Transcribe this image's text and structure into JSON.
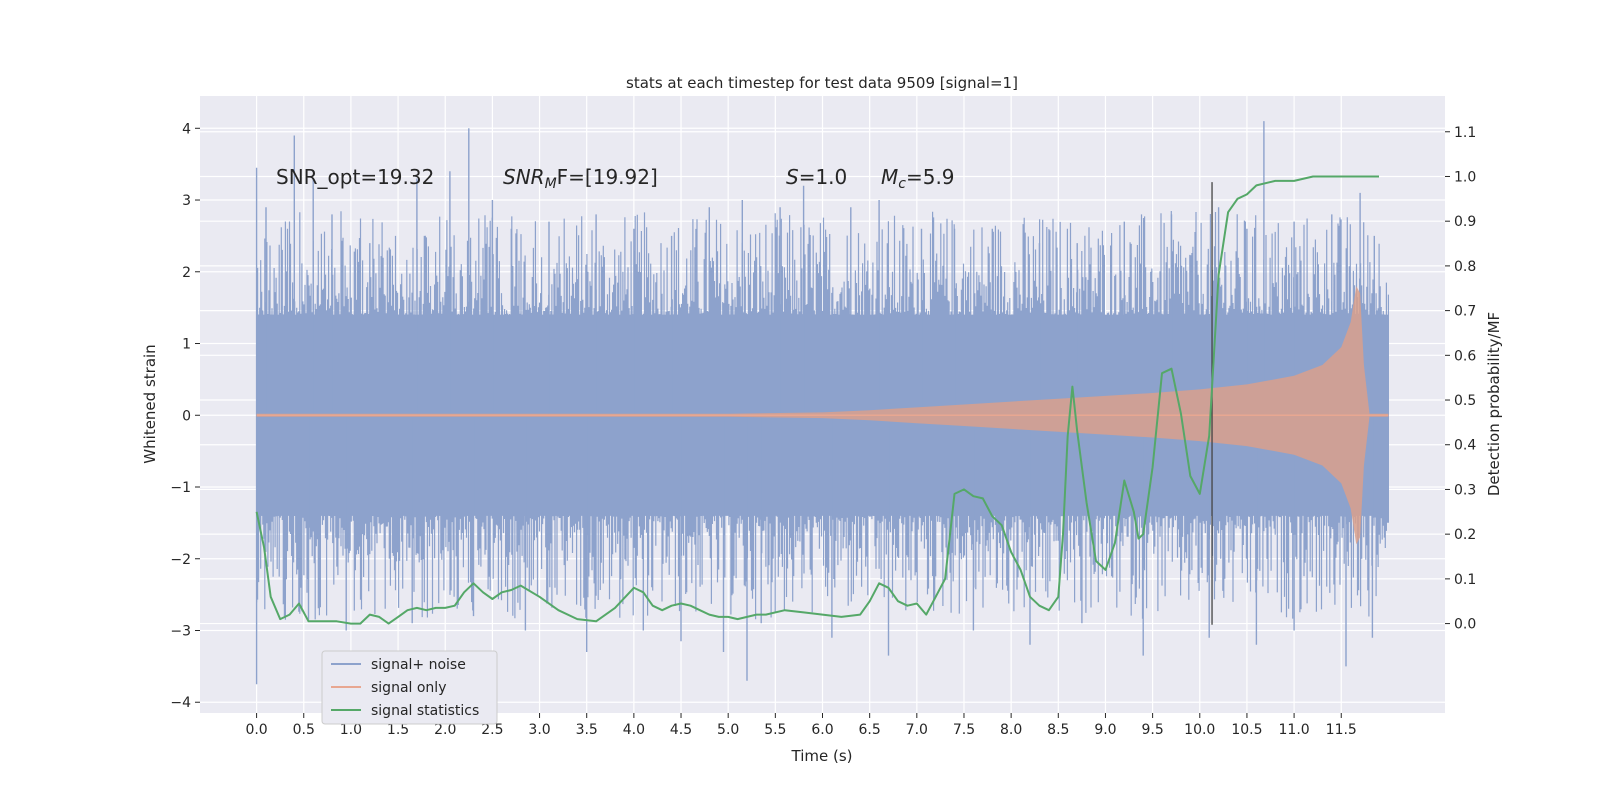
{
  "chart_data": {
    "type": "line",
    "title": "stats at each timestep for test data 9509 [signal=1]",
    "xlabel": "Time (s)",
    "ylabel": "Whitened strain",
    "ylabel_right": "Detection probability/MF",
    "xlim": [
      -0.6,
      12.6
    ],
    "ylim": [
      -4.15,
      4.45
    ],
    "ylim_right": [
      -0.2,
      1.18
    ],
    "x_ticks": [
      0.0,
      0.5,
      1.0,
      1.5,
      2.0,
      2.5,
      3.0,
      3.5,
      4.0,
      4.5,
      5.0,
      5.5,
      6.0,
      6.5,
      7.0,
      7.5,
      8.0,
      8.5,
      9.0,
      9.5,
      10.0,
      10.5,
      11.0,
      11.5
    ],
    "x_tick_labels": [
      "0.0",
      "0.5",
      "1.0",
      "1.5",
      "2.0",
      "2.5",
      "3.0",
      "3.5",
      "4.0",
      "4.5",
      "5.0",
      "5.5",
      "6.0",
      "6.5",
      "7.0",
      "7.5",
      "8.0",
      "8.5",
      "9.0",
      "9.5",
      "10.0",
      "10.5",
      "11.0",
      "11.5"
    ],
    "y_ticks": [
      -4,
      -3,
      -2,
      -1,
      0,
      1,
      2,
      3,
      4
    ],
    "y_tick_labels": [
      "−4",
      "−3",
      "−2",
      "−1",
      "0",
      "1",
      "2",
      "3",
      "4"
    ],
    "y_right_ticks": [
      0.0,
      0.1,
      0.2,
      0.3,
      0.4,
      0.5,
      0.6,
      0.7,
      0.8,
      0.9,
      1.0,
      1.1
    ],
    "y_right_tick_labels": [
      "0.0",
      "0.1",
      "0.2",
      "0.3",
      "0.4",
      "0.5",
      "0.6",
      "0.7",
      "0.8",
      "0.9",
      "1.0",
      "1.1"
    ],
    "grid": true,
    "legend_position": "bottom-left",
    "annotations": {
      "snr_opt": "SNR_opt=19.32",
      "snr_mf_main": "SNR",
      "snr_mf_sub": "M",
      "snr_mf_rest": "F=[19.92]",
      "s_italic": "S",
      "s_value": "=1.0",
      "mc_main": "M",
      "mc_sub": "c",
      "mc_value": "=5.9"
    },
    "detection_time": 10.13,
    "series": [
      {
        "name": "signal+ noise",
        "color": "#8da2cc",
        "x_range": [
          0.0,
          12.0
        ],
        "band_y": [
          -1.4,
          1.4
        ],
        "spike_peaks": [
          [
            0.0,
            3.45
          ],
          [
            0.0,
            -3.75
          ],
          [
            0.1,
            2.9
          ],
          [
            0.4,
            3.9
          ],
          [
            0.6,
            3.3
          ],
          [
            0.8,
            2.8
          ],
          [
            1.2,
            2.4
          ],
          [
            1.7,
            3.3
          ],
          [
            2.05,
            3.4
          ],
          [
            2.25,
            4.0
          ],
          [
            2.5,
            3.0
          ],
          [
            2.7,
            2.6
          ],
          [
            3.1,
            2.7
          ],
          [
            3.6,
            2.8
          ],
          [
            4.0,
            2.6
          ],
          [
            4.4,
            2.5
          ],
          [
            4.8,
            2.9
          ],
          [
            5.15,
            3.0
          ],
          [
            5.55,
            2.9
          ],
          [
            5.8,
            3.2
          ],
          [
            6.3,
            2.9
          ],
          [
            6.6,
            3.0
          ],
          [
            7.05,
            2.6
          ],
          [
            7.4,
            2.6
          ],
          [
            7.8,
            2.6
          ],
          [
            8.3,
            2.4
          ],
          [
            8.7,
            2.4
          ],
          [
            9.2,
            2.7
          ],
          [
            9.7,
            2.8
          ],
          [
            10.2,
            2.9
          ],
          [
            10.5,
            2.6
          ],
          [
            10.68,
            4.1
          ],
          [
            11.0,
            2.7
          ],
          [
            11.4,
            2.8
          ],
          [
            11.7,
            3.1
          ],
          [
            11.85,
            2.5
          ],
          [
            0.55,
            -2.85
          ],
          [
            0.95,
            -3.0
          ],
          [
            1.65,
            -2.9
          ],
          [
            2.3,
            -2.8
          ],
          [
            2.85,
            -3.0
          ],
          [
            3.5,
            -3.3
          ],
          [
            4.1,
            -3.0
          ],
          [
            4.5,
            -3.15
          ],
          [
            4.95,
            -3.3
          ],
          [
            5.35,
            -2.9
          ],
          [
            6.1,
            -3.1
          ],
          [
            6.7,
            -3.35
          ],
          [
            7.6,
            -3.0
          ],
          [
            8.2,
            -3.2
          ],
          [
            8.75,
            -2.9
          ],
          [
            9.4,
            -3.35
          ],
          [
            10.1,
            -3.1
          ],
          [
            10.6,
            -3.2
          ],
          [
            11.0,
            -3.0
          ],
          [
            11.55,
            -3.5
          ],
          [
            11.83,
            -3.1
          ],
          [
            5.2,
            -3.7
          ]
        ]
      },
      {
        "name": "signal only",
        "color": "#d9a08c",
        "x": [
          0.0,
          5.0,
          6.0,
          6.5,
          7.0,
          7.5,
          8.0,
          8.5,
          9.0,
          9.5,
          10.0,
          10.5,
          11.0,
          11.3,
          11.5,
          11.6,
          11.66,
          11.7,
          11.74,
          11.8,
          12.0
        ],
        "amplitude": [
          0.02,
          0.02,
          0.04,
          0.07,
          0.11,
          0.15,
          0.19,
          0.23,
          0.27,
          0.31,
          0.36,
          0.43,
          0.55,
          0.7,
          0.95,
          1.3,
          1.8,
          1.7,
          0.7,
          0.02,
          0.02
        ]
      },
      {
        "name": "signal statistics",
        "color": "#55a868",
        "x": [
          0.0,
          0.08,
          0.15,
          0.25,
          0.35,
          0.45,
          0.55,
          0.7,
          0.85,
          1.0,
          1.1,
          1.2,
          1.3,
          1.4,
          1.5,
          1.6,
          1.7,
          1.8,
          1.9,
          2.0,
          2.1,
          2.2,
          2.3,
          2.4,
          2.5,
          2.6,
          2.7,
          2.8,
          3.0,
          3.2,
          3.4,
          3.6,
          3.8,
          4.0,
          4.1,
          4.2,
          4.3,
          4.4,
          4.5,
          4.6,
          4.7,
          4.8,
          4.9,
          5.0,
          5.1,
          5.2,
          5.3,
          5.4,
          5.6,
          5.8,
          6.0,
          6.2,
          6.4,
          6.5,
          6.6,
          6.7,
          6.8,
          6.9,
          7.0,
          7.1,
          7.2,
          7.3,
          7.4,
          7.5,
          7.6,
          7.7,
          7.8,
          7.9,
          8.0,
          8.1,
          8.2,
          8.3,
          8.4,
          8.5,
          8.55,
          8.6,
          8.65,
          8.7,
          8.8,
          8.9,
          9.0,
          9.1,
          9.2,
          9.3,
          9.35,
          9.4,
          9.5,
          9.6,
          9.7,
          9.8,
          9.9,
          10.0,
          10.1,
          10.15,
          10.2,
          10.3,
          10.4,
          10.5,
          10.6,
          10.8,
          11.0,
          11.2,
          11.5,
          11.7,
          11.9
        ],
        "y": [
          0.25,
          0.17,
          0.06,
          0.01,
          0.02,
          0.045,
          0.005,
          0.005,
          0.005,
          0.0,
          0.0,
          0.02,
          0.015,
          0.0,
          0.015,
          0.03,
          0.035,
          0.03,
          0.035,
          0.035,
          0.04,
          0.07,
          0.09,
          0.07,
          0.055,
          0.07,
          0.075,
          0.085,
          0.06,
          0.03,
          0.01,
          0.005,
          0.035,
          0.08,
          0.07,
          0.04,
          0.03,
          0.04,
          0.045,
          0.04,
          0.03,
          0.02,
          0.015,
          0.015,
          0.01,
          0.015,
          0.02,
          0.02,
          0.03,
          0.025,
          0.02,
          0.015,
          0.02,
          0.05,
          0.09,
          0.08,
          0.05,
          0.04,
          0.045,
          0.02,
          0.06,
          0.1,
          0.29,
          0.3,
          0.285,
          0.28,
          0.24,
          0.22,
          0.16,
          0.12,
          0.06,
          0.04,
          0.03,
          0.06,
          0.2,
          0.42,
          0.53,
          0.43,
          0.27,
          0.14,
          0.12,
          0.18,
          0.32,
          0.25,
          0.19,
          0.2,
          0.35,
          0.56,
          0.57,
          0.47,
          0.33,
          0.29,
          0.42,
          0.6,
          0.78,
          0.92,
          0.95,
          0.96,
          0.98,
          0.99,
          0.99,
          1.0,
          1.0,
          1.0,
          1.0
        ]
      }
    ]
  }
}
